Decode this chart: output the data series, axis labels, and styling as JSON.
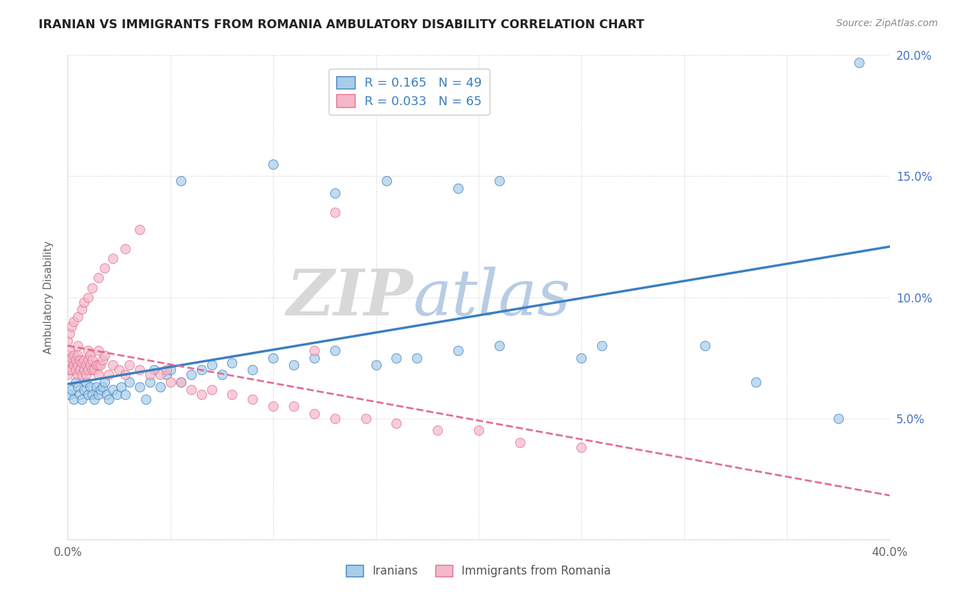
{
  "title": "IRANIAN VS IMMIGRANTS FROM ROMANIA AMBULATORY DISABILITY CORRELATION CHART",
  "source": "Source: ZipAtlas.com",
  "ylabel": "Ambulatory Disability",
  "xmin": 0.0,
  "xmax": 0.4,
  "ymin": 0.0,
  "ymax": 0.2,
  "legend_R1": "0.165",
  "legend_N1": "49",
  "legend_R2": "0.033",
  "legend_N2": "65",
  "color_iranian": "#a8cde8",
  "color_romanian": "#f4b8c8",
  "color_trendline_iranian": "#3a7fc1",
  "color_trendline_romania": "#e07090",
  "iranians_x": [
    0.001,
    0.002,
    0.003,
    0.004,
    0.005,
    0.006,
    0.007,
    0.008,
    0.009,
    0.01,
    0.011,
    0.012,
    0.013,
    0.014,
    0.015,
    0.016,
    0.017,
    0.018,
    0.019,
    0.02,
    0.022,
    0.024,
    0.026,
    0.028,
    0.03,
    0.035,
    0.038,
    0.04,
    0.042,
    0.045,
    0.048,
    0.05,
    0.055,
    0.06,
    0.065,
    0.07,
    0.075,
    0.08,
    0.09,
    0.1,
    0.11,
    0.12,
    0.13,
    0.15,
    0.16,
    0.17,
    0.19,
    0.21,
    0.25
  ],
  "iranians_y": [
    0.06,
    0.062,
    0.058,
    0.065,
    0.063,
    0.06,
    0.058,
    0.062,
    0.065,
    0.06,
    0.063,
    0.06,
    0.058,
    0.063,
    0.06,
    0.062,
    0.063,
    0.065,
    0.06,
    0.058,
    0.062,
    0.06,
    0.063,
    0.06,
    0.065,
    0.063,
    0.058,
    0.065,
    0.07,
    0.063,
    0.068,
    0.07,
    0.065,
    0.068,
    0.07,
    0.072,
    0.068,
    0.073,
    0.07,
    0.075,
    0.072,
    0.075,
    0.078,
    0.072,
    0.075,
    0.075,
    0.078,
    0.08,
    0.075
  ],
  "iranians_x2": [
    0.055,
    0.1,
    0.13,
    0.155,
    0.19,
    0.21,
    0.26,
    0.31,
    0.335,
    0.375,
    0.385
  ],
  "iranians_y2": [
    0.148,
    0.155,
    0.143,
    0.148,
    0.145,
    0.148,
    0.08,
    0.08,
    0.065,
    0.05,
    0.197
  ],
  "romania_x": [
    0.0,
    0.0,
    0.0,
    0.001,
    0.001,
    0.001,
    0.002,
    0.002,
    0.003,
    0.003,
    0.004,
    0.004,
    0.005,
    0.005,
    0.005,
    0.005,
    0.006,
    0.006,
    0.007,
    0.007,
    0.008,
    0.008,
    0.009,
    0.009,
    0.01,
    0.01,
    0.01,
    0.011,
    0.011,
    0.012,
    0.012,
    0.013,
    0.014,
    0.015,
    0.015,
    0.015,
    0.016,
    0.017,
    0.018,
    0.02,
    0.022,
    0.025,
    0.028,
    0.03,
    0.035,
    0.04,
    0.045,
    0.048,
    0.05,
    0.055,
    0.06,
    0.065,
    0.07,
    0.08,
    0.09,
    0.1,
    0.11,
    0.12,
    0.13,
    0.145,
    0.16,
    0.18,
    0.2,
    0.22,
    0.25
  ],
  "romania_y": [
    0.068,
    0.072,
    0.076,
    0.07,
    0.074,
    0.078,
    0.07,
    0.075,
    0.072,
    0.076,
    0.07,
    0.074,
    0.068,
    0.072,
    0.076,
    0.08,
    0.07,
    0.074,
    0.068,
    0.073,
    0.07,
    0.074,
    0.068,
    0.072,
    0.07,
    0.074,
    0.078,
    0.072,
    0.076,
    0.07,
    0.074,
    0.07,
    0.072,
    0.068,
    0.072,
    0.078,
    0.072,
    0.074,
    0.076,
    0.068,
    0.072,
    0.07,
    0.068,
    0.072,
    0.07,
    0.068,
    0.068,
    0.07,
    0.065,
    0.065,
    0.062,
    0.06,
    0.062,
    0.06,
    0.058,
    0.055,
    0.055,
    0.052,
    0.05,
    0.05,
    0.048,
    0.045,
    0.045,
    0.04,
    0.038
  ],
  "romania_x2": [
    0.0,
    0.001,
    0.002,
    0.003,
    0.005,
    0.007,
    0.008,
    0.01,
    0.012,
    0.015,
    0.018,
    0.022,
    0.028,
    0.035,
    0.12,
    0.13
  ],
  "romania_y2": [
    0.082,
    0.085,
    0.088,
    0.09,
    0.092,
    0.095,
    0.098,
    0.1,
    0.104,
    0.108,
    0.112,
    0.116,
    0.12,
    0.128,
    0.078,
    0.135
  ]
}
